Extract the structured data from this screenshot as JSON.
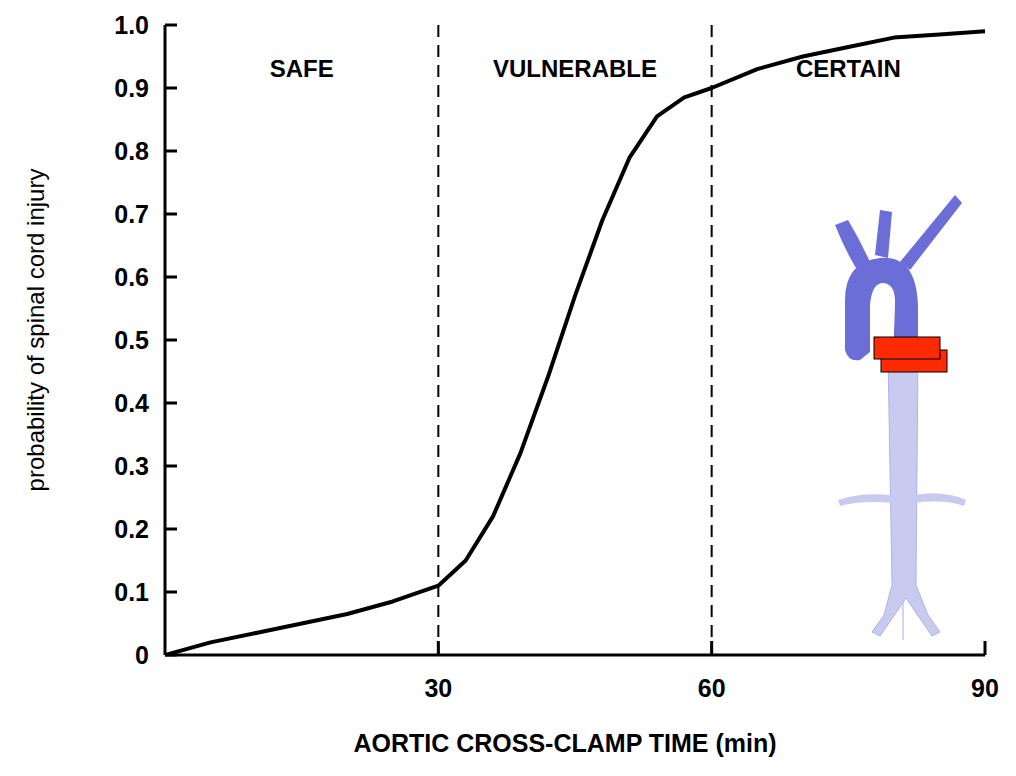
{
  "chart_data": {
    "type": "line",
    "x_label": "AORTIC CROSS-CLAMP TIME (min)",
    "y_label": "probability of spinal cord injury",
    "x": [
      0,
      5,
      10,
      15,
      20,
      25,
      30,
      33,
      36,
      39,
      42,
      45,
      48,
      51,
      54,
      57,
      60,
      65,
      70,
      75,
      80,
      85,
      90
    ],
    "series": [
      {
        "name": "probability of spinal cord injury",
        "color": "#000000",
        "values": [
          0,
          0.02,
          0.035,
          0.05,
          0.065,
          0.085,
          0.11,
          0.15,
          0.22,
          0.32,
          0.44,
          0.57,
          0.69,
          0.79,
          0.855,
          0.885,
          0.9,
          0.93,
          0.95,
          0.965,
          0.98,
          0.985,
          0.99
        ]
      }
    ],
    "zones": [
      {
        "label": "SAFE",
        "start": 0,
        "end": 30
      },
      {
        "label": "VULNERABLE",
        "start": 30,
        "end": 60
      },
      {
        "label": "CERTAIN",
        "start": 60,
        "end": 90
      }
    ],
    "xlim": [
      0,
      90
    ],
    "xticks": [
      30,
      60,
      90
    ],
    "ylim": [
      0,
      1
    ],
    "yticks": [
      0,
      0.1,
      0.2,
      0.3,
      0.4,
      0.5,
      0.6,
      0.7,
      0.8,
      0.9,
      {
        "value": 1,
        "label": "1.0"
      }
    ],
    "grid": false
  }
}
